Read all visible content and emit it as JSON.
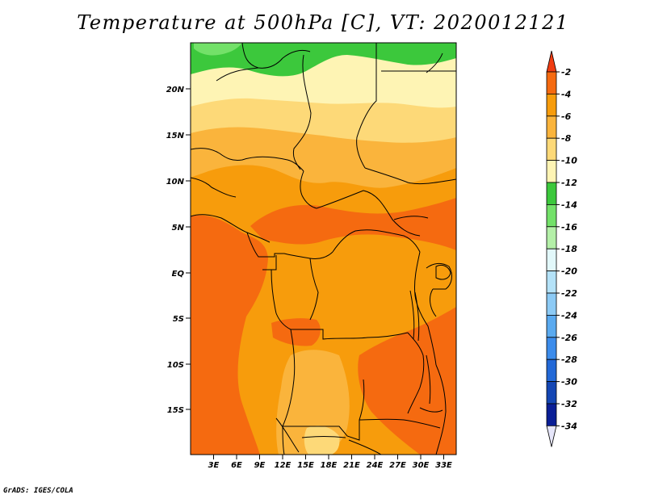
{
  "title": "Temperature at 500hPa [C], VT: 2020012121",
  "credit": "GrADS: IGES/COLA",
  "map": {
    "lat_labels": [
      "20N",
      "15N",
      "10N",
      "5N",
      "EQ",
      "5S",
      "10S",
      "15S"
    ],
    "lon_labels": [
      "3E",
      "6E",
      "9E",
      "12E",
      "15E",
      "18E",
      "21E",
      "24E",
      "27E",
      "30E",
      "33E"
    ]
  },
  "colorbar": {
    "labels": [
      "-2",
      "-4",
      "-6",
      "-8",
      "-10",
      "-12",
      "-14",
      "-16",
      "-18",
      "-20",
      "-22",
      "-24",
      "-26",
      "-28",
      "-30",
      "-32",
      "-34"
    ],
    "colors": {
      "above_-2": "#f03c12",
      "-4_to_-2": "#f56a10",
      "-6_to_-4": "#f79c0c",
      "-8_to_-6": "#fab43c",
      "-10_to_-8": "#fdd978",
      "-12_to_-10": "#fef4b4",
      "-14_to_-12": "#3cc83c",
      "-16_to_-14": "#73e169",
      "-18_to_-16": "#b4f0a8",
      "-20_to_-18": "#e2f8fa",
      "-22_to_-20": "#b4e2f8",
      "-24_to_-22": "#8ccaf5",
      "-26_to_-24": "#5aaaf0",
      "-28_to_-26": "#3c8ceb",
      "-30_to_-28": "#2369d7",
      "-32_to_-30": "#1446b4",
      "-34_to_-32": "#0a1e96",
      "below_-34": "#e6e6fa"
    }
  }
}
